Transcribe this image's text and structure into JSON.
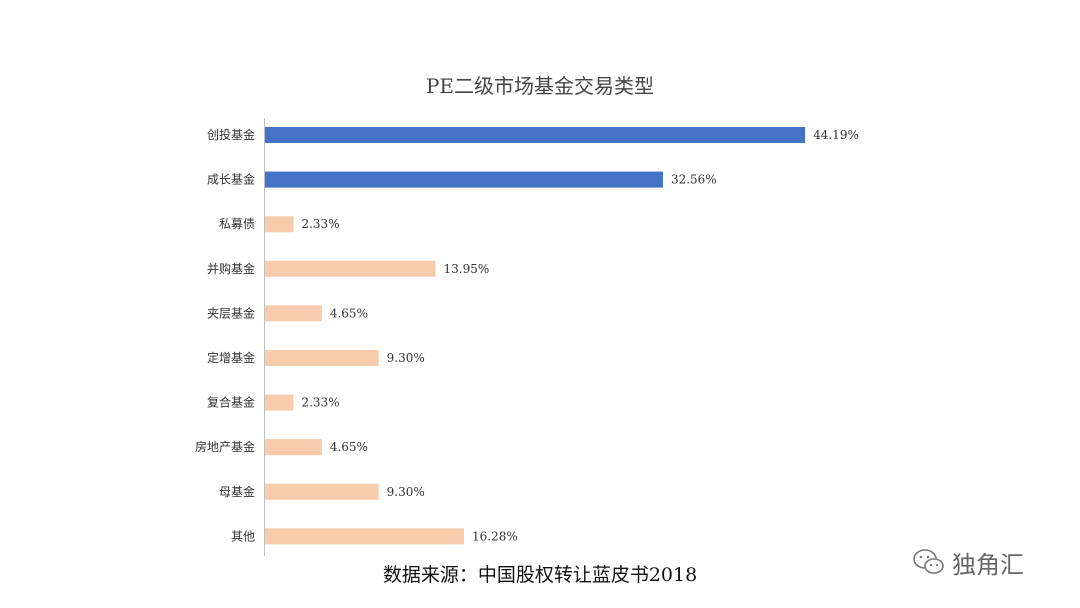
{
  "chart_data": {
    "type": "bar",
    "orientation": "horizontal",
    "title": "PE二级市场基金交易类型",
    "categories": [
      "创投基金",
      "成长基金",
      "私募债",
      "并购基金",
      "夹层基金",
      "定增基金",
      "复合基金",
      "房地产基金",
      "母基金",
      "其他"
    ],
    "values": [
      44.19,
      32.56,
      2.33,
      13.95,
      4.65,
      9.3,
      2.33,
      4.65,
      9.3,
      16.28
    ],
    "value_labels": [
      "44.19%",
      "32.56%",
      "2.33%",
      "13.95%",
      "4.65%",
      "9.30%",
      "2.33%",
      "4.65%",
      "9.30%",
      "16.28%"
    ],
    "xlim": [
      0,
      45
    ],
    "grid": false,
    "colors": {
      "highlight": "#4472c4",
      "normal": "#f8cbad"
    },
    "highlight_count": 2
  },
  "source_text": "数据来源：中国股权转让蓝皮书2018",
  "watermark": {
    "icon": "wechat-icon",
    "text": "独角汇"
  }
}
